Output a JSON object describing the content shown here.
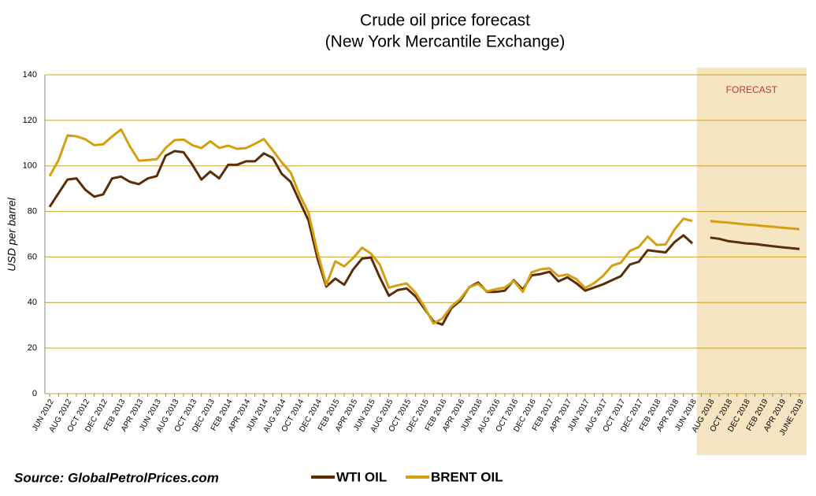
{
  "chart_data": {
    "type": "line",
    "title": "Crude oil price forecast",
    "subtitle": "(New York Mercantile Exchange)",
    "y_label": "USD per barrel",
    "annotation": "FORECAST",
    "source": "Source:  GlobalPetrolPrices.com",
    "categories": [
      "JUN 2012",
      null,
      "AUG 2012",
      null,
      "OCT 2012",
      null,
      "DEC 2012",
      null,
      "FEB 2013",
      null,
      "APR 2013",
      null,
      "JUN 2013",
      null,
      "AUG 2013",
      null,
      "OCT 2013",
      null,
      "DEC 2013",
      null,
      "FEB 2014",
      null,
      "APR 2014",
      null,
      "JUN 2014",
      null,
      "AUG 2014",
      null,
      "OCT 2014",
      null,
      "DEC 2014",
      null,
      "FEB 2015",
      null,
      "APR 2015",
      null,
      "JUN 2015",
      null,
      "AUG 2015",
      null,
      "OCT 2015",
      null,
      "DEC 2015",
      null,
      "FEB 2016",
      null,
      "APR 2016",
      null,
      "JUN 2016",
      null,
      "AUG 2016",
      null,
      "OCT 2016",
      null,
      "DEC 2016",
      null,
      "FEB 2017",
      null,
      "APR 2017",
      null,
      "JUN 2017",
      null,
      "AUG 2017",
      null,
      "OCT 2017",
      null,
      "DEC 2017",
      null,
      "FEB 2018",
      null,
      "APR 2018",
      null,
      "JUN 2018",
      null,
      "AUG 2018",
      null,
      "OCT 2018",
      null,
      "DEC 2018",
      null,
      "FEB 2019",
      null,
      "APR 2019",
      null,
      "JUNE 2019"
    ],
    "series": [
      {
        "name": "WTI OIL",
        "color": "#5a2d06",
        "values": [
          82,
          88,
          94,
          94.5,
          89.5,
          86.5,
          87.5,
          94.5,
          95.3,
          93,
          92,
          94.5,
          95.5,
          104.5,
          106.5,
          106,
          100.5,
          94,
          97.5,
          94.5,
          100.5,
          100.5,
          102,
          102,
          105.5,
          103.5,
          96.5,
          93,
          84.5,
          76,
          59.5,
          47,
          50.5,
          47.8,
          54.5,
          59.3,
          59.8,
          51,
          43,
          45.5,
          46.2,
          42.7,
          37.2,
          31.7,
          30.3,
          37.5,
          40.8,
          46.7,
          48.8,
          44.7,
          44.7,
          45.2,
          49.8,
          45.7,
          52,
          52.5,
          53.5,
          49.3,
          51.1,
          48.5,
          45.2,
          46.6,
          48,
          49.8,
          51.6,
          56.7,
          57.9,
          63,
          62.5,
          62,
          66.5,
          69.5,
          66,
          null,
          68.5,
          68,
          67,
          66.5,
          66,
          65.7,
          65.2,
          64.7,
          64.3,
          63.9,
          63.5
        ]
      },
      {
        "name": "BRENT OIL",
        "color": "#d4a010",
        "values": [
          95.5,
          102.5,
          113.4,
          113,
          111.7,
          109.1,
          109.5,
          112.9,
          116,
          108.5,
          102.3,
          102.6,
          102.9,
          107.9,
          111.3,
          111.6,
          109.1,
          107.8,
          110.8,
          107.9,
          108.9,
          107.5,
          107.8,
          109.7,
          111.8,
          106.8,
          101.6,
          97.1,
          87.4,
          79.4,
          62.3,
          47.8,
          58.1,
          55.9,
          59.5,
          64.1,
          61.5,
          56.6,
          46.5,
          47.6,
          48.4,
          44.3,
          38,
          30.8,
          33,
          38.2,
          41.6,
          46.7,
          48.2,
          44.9,
          45.9,
          46.6,
          49.5,
          44.7,
          53.3,
          54.6,
          55,
          51.6,
          52.3,
          50.3,
          46.4,
          48.5,
          51.7,
          56.2,
          57.5,
          62.7,
          64.4,
          69,
          65.3,
          65.5,
          72,
          76.8,
          75.8,
          null,
          75.8,
          75.4,
          75.1,
          74.7,
          74.3,
          74,
          73.6,
          73.3,
          72.9,
          72.6,
          72.2
        ]
      }
    ],
    "ylim": [
      0,
      140
    ],
    "yticks": [
      0,
      20,
      40,
      60,
      80,
      100,
      120,
      140
    ],
    "grid": true
  }
}
